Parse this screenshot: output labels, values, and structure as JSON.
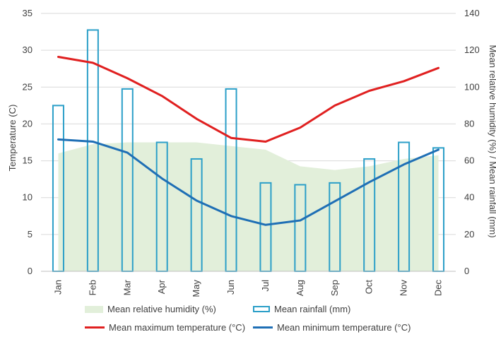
{
  "chart_data": {
    "type": "combo",
    "categories": [
      "Jan",
      "Feb",
      "Mar",
      "Apr",
      "May",
      "Jun",
      "Jul",
      "Aug",
      "Sep",
      "Oct",
      "Nov",
      "Dec"
    ],
    "y_left": {
      "label": "Temperature (C)",
      "min": 0,
      "max": 35,
      "ticks": [
        0,
        5,
        10,
        15,
        20,
        25,
        30,
        35
      ]
    },
    "y_right": {
      "label": "Mean relative humidity (%) / Mean rainfall (mm)",
      "min": 0,
      "max": 140,
      "ticks": [
        0,
        20,
        40,
        60,
        80,
        100,
        120,
        140
      ]
    },
    "grid": true,
    "legend_position": "bottom",
    "series": [
      {
        "name": "Mean relative humidity (%)",
        "kind": "area",
        "axis": "right",
        "color": "#e2efda",
        "values": [
          64,
          69,
          70,
          70,
          70,
          68,
          66,
          57,
          55,
          57,
          61,
          63
        ]
      },
      {
        "name": "Mean rainfall (mm)",
        "kind": "bar",
        "axis": "right",
        "color": "#2b9fc8",
        "values": [
          90,
          131,
          99,
          70,
          61,
          99,
          48,
          47,
          48,
          61,
          70,
          67
        ]
      },
      {
        "name": "Mean maximum temperature (°C)",
        "kind": "line",
        "axis": "left",
        "color": "#e02020",
        "values": [
          29.1,
          28.3,
          26.2,
          23.8,
          20.7,
          18.1,
          17.6,
          19.5,
          22.5,
          24.5,
          25.8,
          27.6
        ]
      },
      {
        "name": "Mean minimum temperature (°C)",
        "kind": "line",
        "axis": "left",
        "color": "#1f6fb5",
        "values": [
          17.9,
          17.6,
          16.1,
          12.6,
          9.6,
          7.5,
          6.3,
          6.9,
          9.5,
          12.1,
          14.5,
          16.5
        ]
      }
    ]
  },
  "legend": {
    "humidity": "Mean relative humidity (%)",
    "rainfall": "Mean rainfall (mm)",
    "max_temp": "Mean maximum temperature (°C)",
    "min_temp": "Mean minimum temperature (°C)"
  },
  "colors": {
    "humidity": "#e2efda",
    "rainfall": "#2b9fc8",
    "max_temp": "#e02020",
    "min_temp": "#1f6fb5",
    "grid": "#d9d9d9"
  }
}
